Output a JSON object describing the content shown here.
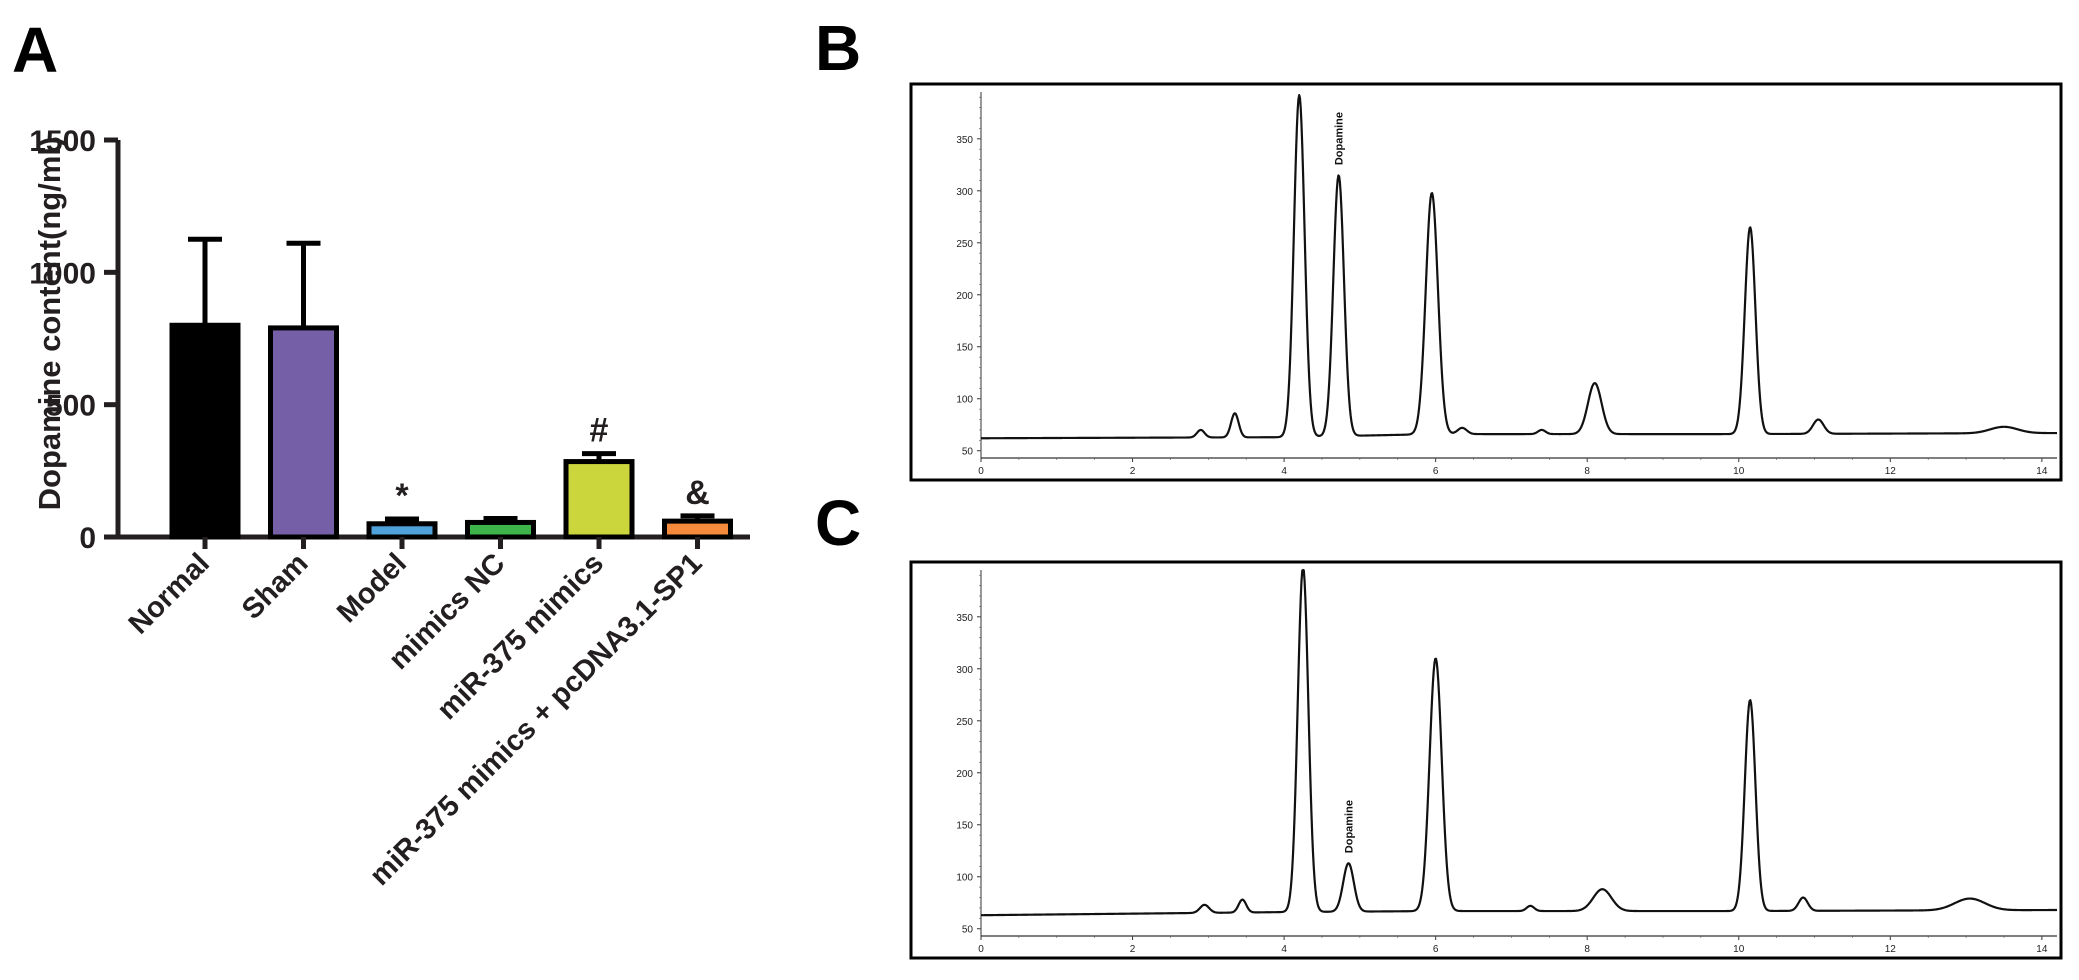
{
  "panel_labels": {
    "a": "A",
    "b": "B",
    "c": "C"
  },
  "chart_data": [
    {
      "type": "bar",
      "ylabel": "Dopamine content(ng/ml)",
      "ylim": [
        0,
        1500
      ],
      "yticks": [
        "0",
        "500",
        "1000",
        "1500"
      ],
      "categories": [
        "Normal",
        "Sham",
        "Model",
        "mimics NC",
        "miR-375 mimics",
        "miR-375 mimics + pcDNA3.1-SP1"
      ],
      "values": [
        800,
        790,
        50,
        55,
        285,
        60
      ],
      "errors": [
        325,
        320,
        18,
        15,
        30,
        20
      ],
      "colors": [
        "#000000",
        "#7560a8",
        "#4ea1d9",
        "#3db54a",
        "#cbd53c",
        "#f58a3c"
      ],
      "annotations": [
        "",
        "",
        "*",
        "",
        "#",
        "&"
      ],
      "grid": false
    },
    {
      "type": "line",
      "peak_label": "Dopamine",
      "xlim": [
        0,
        14.2
      ],
      "ylim": [
        43,
        395
      ],
      "xticks": [
        "0",
        "2",
        "4",
        "6",
        "8",
        "10",
        "12",
        "14"
      ],
      "yticks": [
        "50",
        "100",
        "150",
        "200",
        "250",
        "300",
        "350"
      ],
      "baseline": {
        "x": [
          0,
          4,
          6,
          10,
          14.2
        ],
        "y": [
          62,
          63,
          66,
          66,
          67
        ]
      },
      "peaks": [
        {
          "x": 2.9,
          "height": 70,
          "width": 0.05
        },
        {
          "x": 3.35,
          "height": 86,
          "width": 0.05
        },
        {
          "x": 4.2,
          "height": 392,
          "width": 0.07
        },
        {
          "x": 4.72,
          "height": 315,
          "width": 0.07
        },
        {
          "x": 5.95,
          "height": 298,
          "width": 0.08
        },
        {
          "x": 6.35,
          "height": 72,
          "width": 0.06
        },
        {
          "x": 7.4,
          "height": 70,
          "width": 0.05
        },
        {
          "x": 8.1,
          "height": 115,
          "width": 0.09
        },
        {
          "x": 10.15,
          "height": 265,
          "width": 0.07
        },
        {
          "x": 11.05,
          "height": 80,
          "width": 0.07
        },
        {
          "x": 13.5,
          "height": 73,
          "width": 0.18
        }
      ],
      "dopamine_x": 4.72
    },
    {
      "type": "line",
      "peak_label": "Dopamine",
      "xlim": [
        0,
        14.2
      ],
      "ylim": [
        43,
        395
      ],
      "xticks": [
        "0",
        "2",
        "4",
        "6",
        "8",
        "10",
        "12",
        "14"
      ],
      "yticks": [
        "50",
        "100",
        "150",
        "200",
        "250",
        "300",
        "350"
      ],
      "baseline": {
        "x": [
          0,
          4,
          6,
          10,
          14.2
        ],
        "y": [
          63,
          66,
          67,
          67,
          68
        ]
      },
      "peaks": [
        {
          "x": 2.95,
          "height": 73,
          "width": 0.06
        },
        {
          "x": 3.45,
          "height": 78,
          "width": 0.05
        },
        {
          "x": 4.25,
          "height": 398,
          "width": 0.07
        },
        {
          "x": 4.85,
          "height": 113,
          "width": 0.07
        },
        {
          "x": 6.0,
          "height": 310,
          "width": 0.08
        },
        {
          "x": 7.25,
          "height": 72,
          "width": 0.05
        },
        {
          "x": 8.2,
          "height": 88,
          "width": 0.12
        },
        {
          "x": 10.15,
          "height": 270,
          "width": 0.07
        },
        {
          "x": 10.85,
          "height": 80,
          "width": 0.06
        },
        {
          "x": 13.05,
          "height": 79,
          "width": 0.2
        }
      ],
      "dopamine_x": 4.85
    }
  ]
}
